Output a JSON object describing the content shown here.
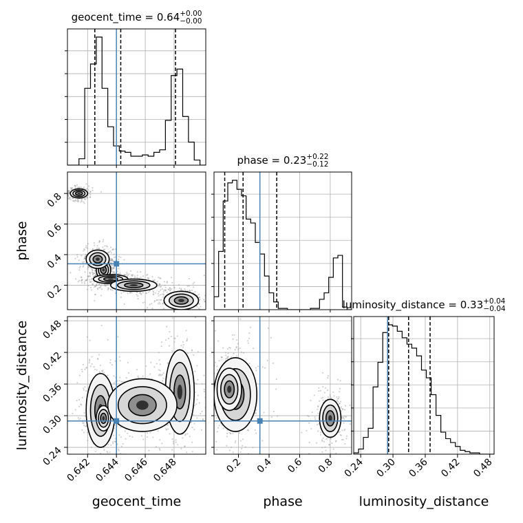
{
  "chart_data": {
    "type": "corner",
    "parameters": [
      {
        "name": "geocent_time",
        "axis_label": "geocent_time",
        "range": [
          0.6406,
          0.6502
        ],
        "truth": 0.644,
        "ticks": [
          0.642,
          0.644,
          0.646,
          0.648
        ],
        "tick_labels": [
          "0.642",
          "0.644",
          "0.646",
          "0.648"
        ],
        "quantiles": [
          0.6425,
          0.6443,
          0.6481
        ],
        "title_prefix": "geocent_time = 0.64",
        "title_sup": "+0.00",
        "title_sub": "−0.00"
      },
      {
        "name": "phase",
        "axis_label": "phase",
        "range": [
          0.04,
          0.94
        ],
        "truth": 0.34,
        "ticks": [
          0.2,
          0.4,
          0.6,
          0.8
        ],
        "tick_labels": [
          "0.2",
          "0.4",
          "0.6",
          "0.8"
        ],
        "quantiles": [
          0.11,
          0.23,
          0.45
        ],
        "title_prefix": "phase = 0.23",
        "title_sup": "+0.22",
        "title_sub": "−0.12"
      },
      {
        "name": "luminosity_distance",
        "axis_label": "luminosity_distance",
        "range": [
          0.227,
          0.488
        ],
        "truth": 0.29,
        "ticks": [
          0.24,
          0.3,
          0.36,
          0.42,
          0.48
        ],
        "tick_labels": [
          "0.24",
          "0.30",
          "0.36",
          "0.42",
          "0.48"
        ],
        "quantiles": [
          0.292,
          0.329,
          0.369
        ],
        "title_prefix": "luminosity_distance = 0.33",
        "title_sup": "+0.04",
        "title_sub": "−0.04"
      }
    ],
    "histograms": [
      {
        "bins": [
          0.6406,
          0.641,
          0.6414,
          0.6418,
          0.6422,
          0.6426,
          0.643,
          0.6434,
          0.6438,
          0.6442,
          0.6446,
          0.645,
          0.6454,
          0.6458,
          0.6462,
          0.6466,
          0.647,
          0.6474,
          0.6478,
          0.6482,
          0.6486,
          0.649,
          0.6494,
          0.6498,
          0.6502
        ],
        "counts": [
          0,
          0,
          0.05,
          0.6,
          0.79,
          1.0,
          0.6,
          0.3,
          0.15,
          0.11,
          0.1,
          0.07,
          0.07,
          0.08,
          0.07,
          0.1,
          0.12,
          0.35,
          0.7,
          0.75,
          0.38,
          0.18,
          0.04,
          0,
          0
        ]
      },
      {
        "bins": [
          0.04,
          0.07,
          0.1,
          0.13,
          0.16,
          0.19,
          0.22,
          0.25,
          0.28,
          0.31,
          0.34,
          0.37,
          0.4,
          0.43,
          0.46,
          0.49,
          0.52,
          0.55,
          0.58,
          0.61,
          0.64,
          0.67,
          0.7,
          0.73,
          0.76,
          0.79,
          0.82,
          0.85,
          0.88,
          0.91,
          0.94
        ],
        "counts": [
          0.1,
          0.45,
          0.84,
          0.98,
          1.0,
          0.93,
          0.88,
          0.7,
          0.67,
          0.52,
          0.43,
          0.26,
          0.13,
          0.06,
          0.01,
          0.01,
          0,
          0,
          0,
          0,
          0,
          0.01,
          0.01,
          0.08,
          0.13,
          0.25,
          0.4,
          0.42,
          0.02,
          0,
          0
        ]
      },
      {
        "bins": [
          0.227,
          0.236,
          0.245,
          0.254,
          0.263,
          0.272,
          0.281,
          0.29,
          0.299,
          0.308,
          0.317,
          0.326,
          0.335,
          0.344,
          0.353,
          0.362,
          0.371,
          0.38,
          0.389,
          0.398,
          0.407,
          0.416,
          0.425,
          0.434,
          0.443,
          0.452,
          0.461,
          0.47,
          0.479,
          0.488
        ],
        "counts": [
          0.01,
          0.04,
          0.13,
          0.2,
          0.52,
          0.71,
          0.94,
          1.0,
          0.99,
          0.95,
          0.9,
          0.85,
          0.82,
          0.76,
          0.65,
          0.59,
          0.46,
          0.3,
          0.17,
          0.12,
          0.09,
          0.06,
          0.03,
          0.02,
          0.01,
          0.01,
          0,
          0,
          0
        ]
      }
    ],
    "contour_panels": [
      {
        "x": "geocent_time",
        "y": "phase",
        "clusters": [
          {
            "cx": 0.6431,
            "cy": 0.3,
            "sx": 0.00025,
            "sy": 0.03
          },
          {
            "cx": 0.6436,
            "cy": 0.24,
            "sx": 0.0006,
            "sy": 0.015
          },
          {
            "cx": 0.6452,
            "cy": 0.2,
            "sx": 0.0008,
            "sy": 0.02
          },
          {
            "cx": 0.6485,
            "cy": 0.1,
            "sx": 0.0006,
            "sy": 0.03
          },
          {
            "cx": 0.6414,
            "cy": 0.8,
            "sx": 0.0003,
            "sy": 0.015
          },
          {
            "cx": 0.6427,
            "cy": 0.37,
            "sx": 0.0004,
            "sy": 0.03
          }
        ]
      },
      {
        "x": "geocent_time",
        "y": "luminosity_distance",
        "clusters": [
          {
            "cx": 0.6429,
            "cy": 0.31,
            "sx": 0.0005,
            "sy": 0.035
          },
          {
            "cx": 0.6431,
            "cy": 0.295,
            "sx": 0.00025,
            "sy": 0.012
          },
          {
            "cx": 0.6484,
            "cy": 0.345,
            "sx": 0.0005,
            "sy": 0.04
          },
          {
            "cx": 0.6458,
            "cy": 0.32,
            "sx": 0.0012,
            "sy": 0.025
          }
        ]
      },
      {
        "x": "phase",
        "y": "luminosity_distance",
        "clusters": [
          {
            "cx": 0.18,
            "cy": 0.34,
            "sx": 0.07,
            "sy": 0.035
          },
          {
            "cx": 0.14,
            "cy": 0.35,
            "sx": 0.04,
            "sy": 0.02
          },
          {
            "cx": 0.8,
            "cy": 0.295,
            "sx": 0.035,
            "sy": 0.018
          }
        ]
      }
    ],
    "truth_color": "#4682b4",
    "grid": true
  }
}
